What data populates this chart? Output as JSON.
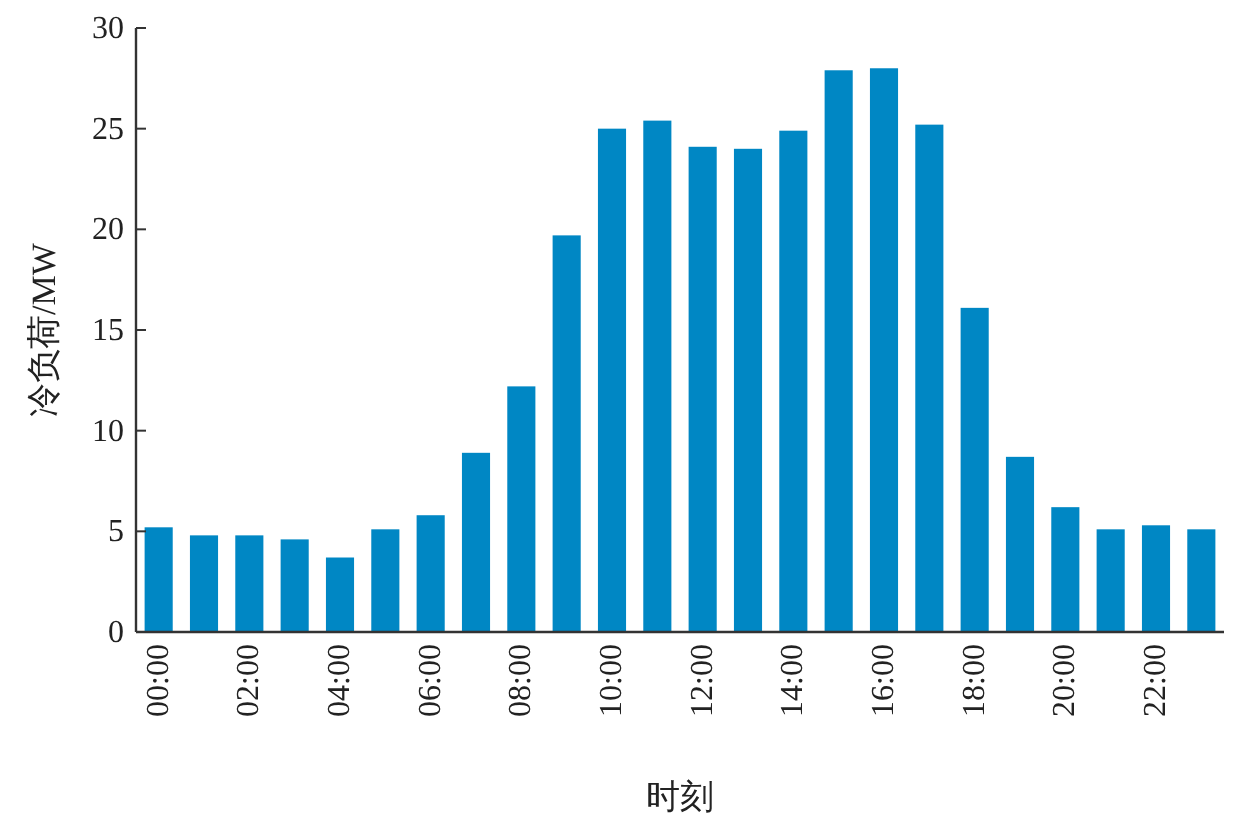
{
  "chart_data": {
    "type": "bar",
    "xlabel": "时刻",
    "ylabel": "冷负荷/MW",
    "categories": [
      "00:00",
      null,
      "02:00",
      null,
      "04:00",
      null,
      "06:00",
      null,
      "08:00",
      null,
      "10:00",
      null,
      "12:00",
      null,
      "14:00",
      null,
      "16:00",
      null,
      "18:00",
      null,
      "20:00",
      null,
      "22:00",
      null
    ],
    "values": [
      5.2,
      4.8,
      4.8,
      4.6,
      3.7,
      5.1,
      5.8,
      8.9,
      12.2,
      19.7,
      25.0,
      25.4,
      24.1,
      24.0,
      24.9,
      27.9,
      28.0,
      25.2,
      16.1,
      8.7,
      6.2,
      5.1,
      5.3,
      5.1
    ],
    "color": "#0087c4",
    "ylim": [
      0,
      30
    ],
    "yticks": [
      0,
      5,
      10,
      15,
      20,
      25,
      30
    ]
  }
}
